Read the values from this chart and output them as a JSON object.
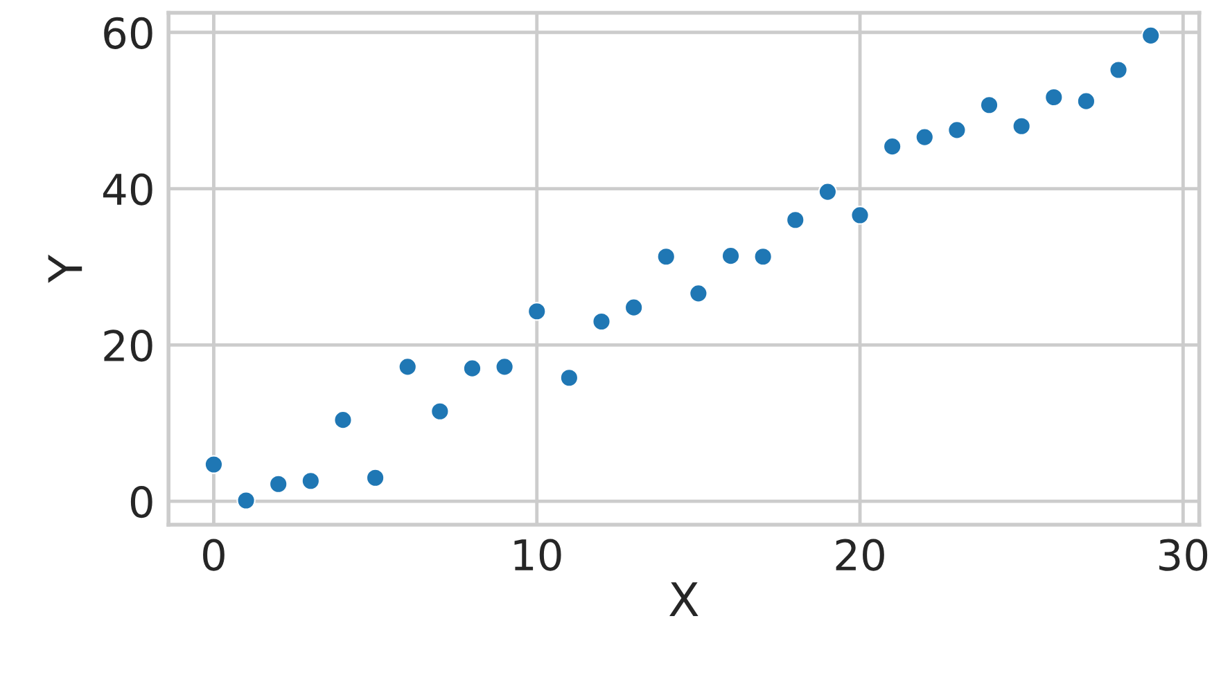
{
  "chart_data": {
    "type": "scatter",
    "xlabel": "X",
    "ylabel": "Y",
    "x": [
      0,
      1,
      2,
      3,
      4,
      5,
      6,
      7,
      8,
      9,
      10,
      11,
      12,
      13,
      14,
      15,
      16,
      17,
      18,
      19,
      20,
      21,
      22,
      23,
      24,
      25,
      26,
      27,
      28,
      29
    ],
    "series": [
      {
        "color": "#1f77b4",
        "values": [
          4.7,
          0.1,
          2.2,
          2.6,
          10.4,
          3.0,
          17.2,
          11.5,
          17.0,
          17.2,
          24.3,
          15.8,
          23.0,
          24.8,
          31.3,
          26.6,
          31.4,
          31.3,
          36.0,
          39.6,
          36.6,
          45.4,
          46.6,
          47.5,
          50.7,
          48.0,
          51.7,
          51.2,
          55.2,
          59.6
        ]
      }
    ],
    "xlim": [
      -1.4,
      30.5
    ],
    "ylim": [
      -3,
      62.5
    ],
    "xticks": [
      0,
      10,
      20,
      30
    ],
    "yticks": [
      0,
      20,
      40,
      60
    ],
    "grid": true,
    "marker": "circle"
  }
}
